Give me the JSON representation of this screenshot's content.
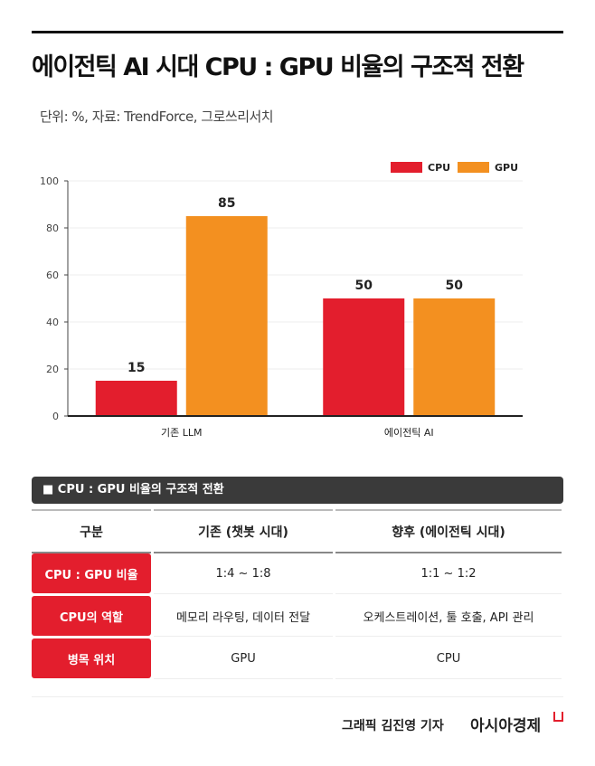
{
  "title": "에이전틱 AI 시대 CPU : GPU 비율의 구조적 전환",
  "subtitle": "단위: %, 자료: TrendForce, 그로쓰리서치",
  "chart_data": {
    "type": "bar",
    "categories": [
      "기존 LLM",
      "에이전틱 AI"
    ],
    "series": [
      {
        "name": "CPU",
        "color": "#e31e2d",
        "values": [
          15,
          50
        ]
      },
      {
        "name": "GPU",
        "color": "#f39020",
        "values": [
          85,
          50
        ]
      }
    ],
    "ylim": [
      0,
      100
    ],
    "yticks": [
      0,
      20,
      40,
      60,
      80,
      100
    ],
    "legend": "top-right",
    "grid": true
  },
  "table": {
    "title": "■ CPU : GPU 비율의 구조적 전환",
    "headers": [
      "구분",
      "기존 (챗봇 시대)",
      "향후 (에이전틱 시대)"
    ],
    "rows": [
      [
        "CPU : GPU 비율",
        "1:4 ~ 1:8",
        "1:1 ~ 1:2"
      ],
      [
        "CPU의 역할",
        "메모리 라우팅, 데이터 전달",
        "오케스트레이션, 툴 호출, API 관리"
      ],
      [
        "병목 위치",
        "GPU",
        "CPU"
      ]
    ]
  },
  "footer": {
    "credit": "그래픽  김진영 기자",
    "brand": "아시아경제"
  }
}
